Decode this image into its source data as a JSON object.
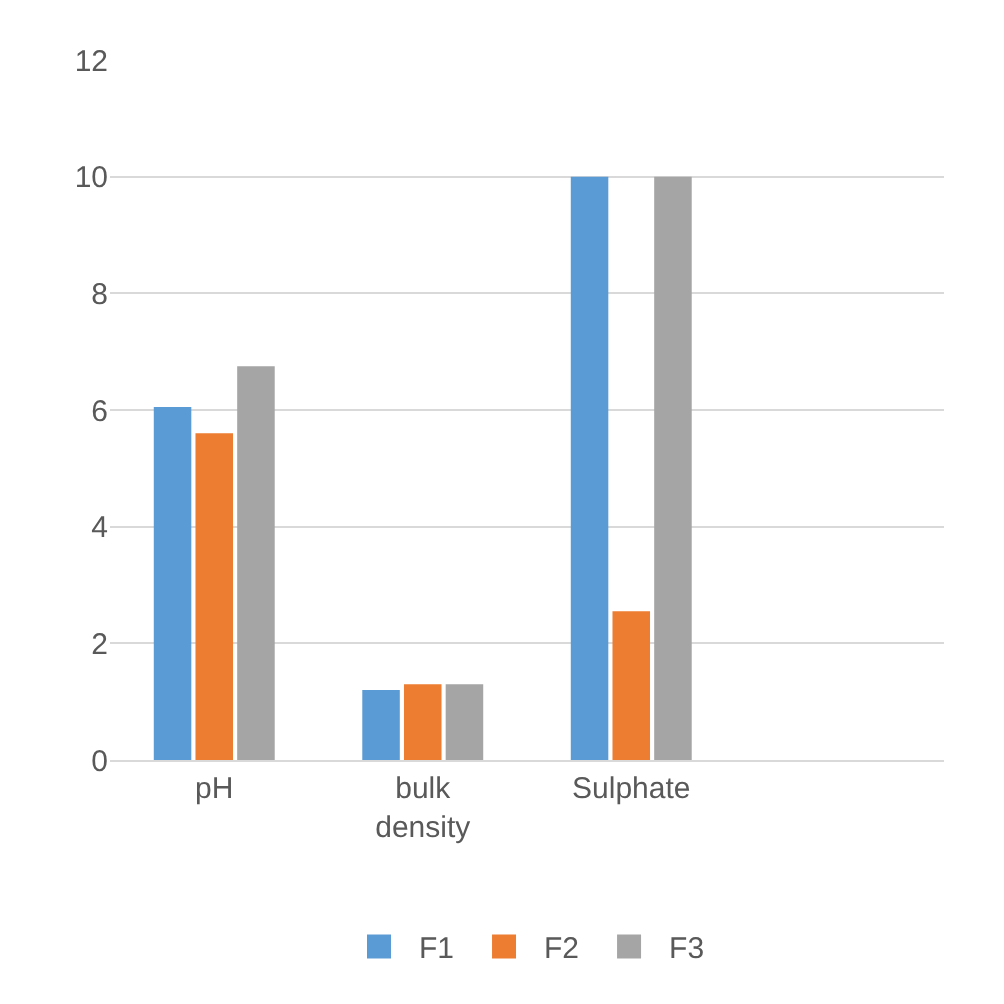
{
  "chart_data": {
    "type": "bar",
    "categories": [
      "pH",
      "bulk density",
      "Sulphate",
      null
    ],
    "series": [
      {
        "name": "F1",
        "color": "#5b9bd5",
        "values": [
          6.05,
          1.2,
          10,
          null
        ]
      },
      {
        "name": "F2",
        "color": "#ed7d31",
        "values": [
          5.6,
          1.3,
          2.55,
          null
        ]
      },
      {
        "name": "F3",
        "color": "#a5a5a5",
        "values": [
          6.75,
          1.3,
          10,
          null
        ]
      }
    ],
    "ylim": [
      0,
      12
    ],
    "yticks": [
      0,
      2,
      4,
      6,
      8,
      10,
      12
    ],
    "grid": "y",
    "legend": "bottom"
  }
}
